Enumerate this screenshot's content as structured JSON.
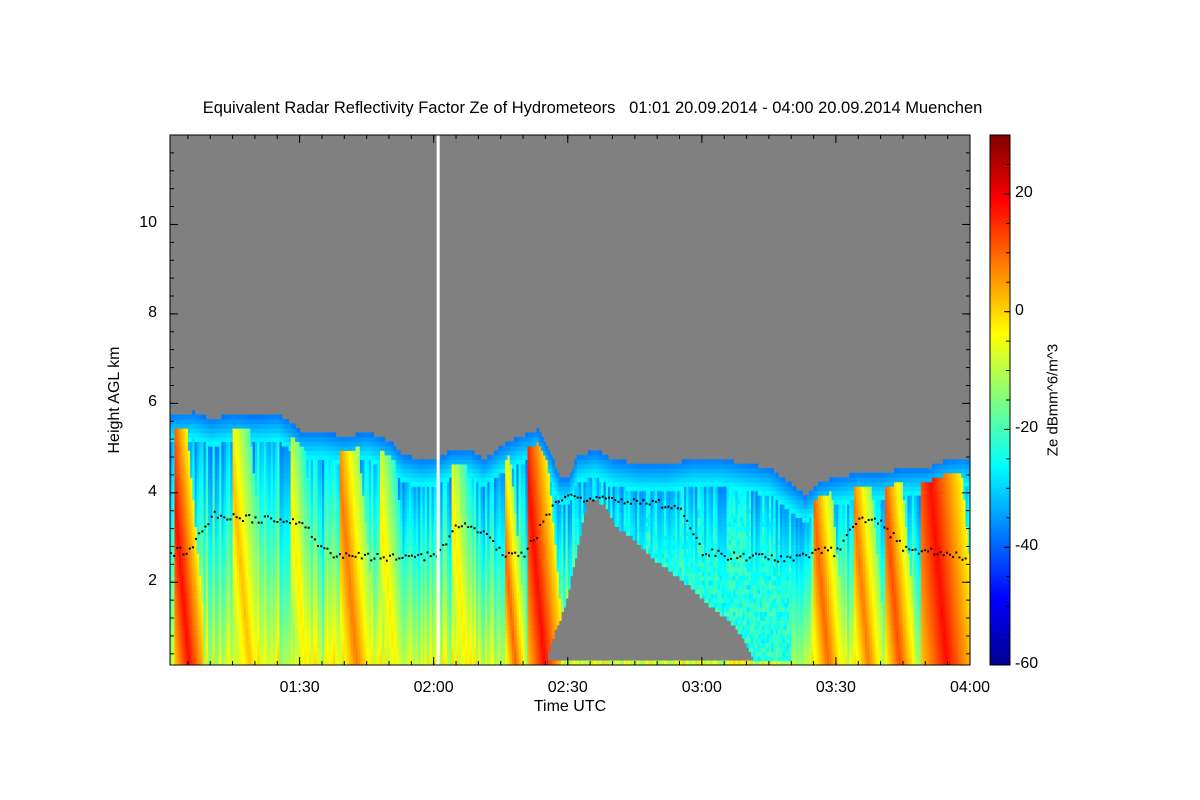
{
  "chart_data": {
    "type": "heatmap",
    "title": "Equivalent Radar Reflectivity Factor Ze of Hydrometeors   01:01 20.09.2014 - 04:00 20.09.2014 Muenchen",
    "xlabel": "Time UTC",
    "ylabel": "Height AGL km",
    "colorbar_label": "Ze dBmm^6/m^3",
    "xlim_minutes": [
      61,
      240
    ],
    "ylim_km": [
      0.15,
      12
    ],
    "clim": [
      -60,
      30
    ],
    "x_ticks": [
      {
        "minute": 90,
        "label": "01:30"
      },
      {
        "minute": 120,
        "label": "02:00"
      },
      {
        "minute": 150,
        "label": "02:30"
      },
      {
        "minute": 180,
        "label": "03:00"
      },
      {
        "minute": 210,
        "label": "03:30"
      },
      {
        "minute": 240,
        "label": "04:00"
      }
    ],
    "y_ticks": [
      {
        "value": 2,
        "label": "2"
      },
      {
        "value": 4,
        "label": "4"
      },
      {
        "value": 6,
        "label": "6"
      },
      {
        "value": 8,
        "label": "8"
      },
      {
        "value": 10,
        "label": "10"
      }
    ],
    "colorbar_ticks": [
      {
        "value": 20,
        "label": "20"
      },
      {
        "value": 0,
        "label": "0"
      },
      {
        "value": -20,
        "label": "-20"
      },
      {
        "value": -40,
        "label": "-40"
      },
      {
        "value": -60,
        "label": "-60"
      }
    ],
    "data_gap_minute": 121,
    "echo_top_km": [
      [
        61,
        5.7
      ],
      [
        66,
        5.75
      ],
      [
        70,
        5.6
      ],
      [
        75,
        5.7
      ],
      [
        80,
        5.65
      ],
      [
        85,
        5.7
      ],
      [
        88,
        5.5
      ],
      [
        90,
        5.3
      ],
      [
        95,
        5.3
      ],
      [
        100,
        5.2
      ],
      [
        105,
        5.3
      ],
      [
        110,
        5.1
      ],
      [
        113,
        4.8
      ],
      [
        117,
        4.7
      ],
      [
        121,
        4.75
      ],
      [
        124,
        4.9
      ],
      [
        128,
        4.9
      ],
      [
        131,
        4.7
      ],
      [
        135,
        5.0
      ],
      [
        139,
        5.2
      ],
      [
        143,
        5.35
      ],
      [
        146,
        4.8
      ],
      [
        148,
        4.3
      ],
      [
        150,
        4.3
      ],
      [
        152,
        4.8
      ],
      [
        156,
        4.9
      ],
      [
        160,
        4.7
      ],
      [
        166,
        4.6
      ],
      [
        172,
        4.6
      ],
      [
        178,
        4.7
      ],
      [
        184,
        4.7
      ],
      [
        190,
        4.6
      ],
      [
        195,
        4.5
      ],
      [
        199,
        4.2
      ],
      [
        203,
        3.9
      ],
      [
        206,
        4.2
      ],
      [
        210,
        4.3
      ],
      [
        215,
        4.4
      ],
      [
        220,
        4.4
      ],
      [
        225,
        4.5
      ],
      [
        230,
        4.5
      ],
      [
        235,
        4.7
      ],
      [
        238,
        4.75
      ],
      [
        240,
        4.7
      ]
    ],
    "rain_echo_base_km": [
      [
        61,
        0.15
      ],
      [
        145,
        0.15
      ],
      [
        146,
        0.6
      ],
      [
        149,
        1.4
      ],
      [
        151,
        2.3
      ],
      [
        153,
        3.3
      ],
      [
        154,
        3.8
      ],
      [
        156,
        3.8
      ],
      [
        158,
        3.7
      ],
      [
        160,
        3.3
      ],
      [
        162,
        3.1
      ],
      [
        164,
        3.0
      ],
      [
        166,
        2.8
      ],
      [
        168,
        2.6
      ],
      [
        170,
        2.4
      ],
      [
        172,
        2.3
      ],
      [
        174,
        2.1
      ],
      [
        176,
        1.95
      ],
      [
        178,
        1.8
      ],
      [
        180,
        1.6
      ],
      [
        182,
        1.4
      ],
      [
        186,
        1.1
      ],
      [
        189,
        0.7
      ],
      [
        192,
        0.15
      ],
      [
        240,
        0.15
      ]
    ],
    "fall_streaks": [
      {
        "start_minute": 62,
        "end_minute": 68,
        "peak_dbz": 18
      },
      {
        "start_minute": 75,
        "end_minute": 82,
        "peak_dbz": 2
      },
      {
        "start_minute": 88,
        "end_minute": 94,
        "peak_dbz": -2
      },
      {
        "start_minute": 94,
        "end_minute": 98,
        "peak_dbz": -30
      },
      {
        "start_minute": 99,
        "end_minute": 106,
        "peak_dbz": 8
      },
      {
        "start_minute": 108,
        "end_minute": 114,
        "peak_dbz": -2
      },
      {
        "start_minute": 124,
        "end_minute": 130,
        "peak_dbz": -2
      },
      {
        "start_minute": 136,
        "end_minute": 140,
        "peak_dbz": 10
      },
      {
        "start_minute": 141,
        "end_minute": 148,
        "peak_dbz": 18
      },
      {
        "start_minute": 185,
        "end_minute": 189,
        "peak_dbz": -30
      },
      {
        "start_minute": 205,
        "end_minute": 211,
        "peak_dbz": 10
      },
      {
        "start_minute": 214,
        "end_minute": 220,
        "peak_dbz": 8
      },
      {
        "start_minute": 221,
        "end_minute": 227,
        "peak_dbz": 12
      },
      {
        "start_minute": 229,
        "end_minute": 240,
        "peak_dbz": 18
      }
    ],
    "melting_layer_km": [
      [
        61,
        2.7
      ],
      [
        65,
        2.75
      ],
      [
        70,
        3.5
      ],
      [
        75,
        3.5
      ],
      [
        80,
        3.4
      ],
      [
        85,
        3.4
      ],
      [
        90,
        3.4
      ],
      [
        95,
        2.7
      ],
      [
        100,
        2.6
      ],
      [
        105,
        2.6
      ],
      [
        110,
        2.6
      ],
      [
        115,
        2.6
      ],
      [
        120,
        2.6
      ],
      [
        125,
        3.3
      ],
      [
        130,
        3.2
      ],
      [
        135,
        2.7
      ],
      [
        140,
        2.65
      ],
      [
        148,
        3.9
      ],
      [
        155,
        3.9
      ],
      [
        160,
        3.8
      ],
      [
        165,
        3.8
      ],
      [
        170,
        3.8
      ],
      [
        175,
        3.7
      ],
      [
        180,
        2.7
      ],
      [
        185,
        2.6
      ],
      [
        190,
        2.6
      ],
      [
        195,
        2.6
      ],
      [
        200,
        2.55
      ],
      [
        205,
        2.7
      ],
      [
        210,
        2.7
      ],
      [
        215,
        3.5
      ],
      [
        220,
        3.3
      ],
      [
        225,
        2.8
      ],
      [
        230,
        2.7
      ],
      [
        235,
        2.7
      ],
      [
        238,
        2.6
      ]
    ]
  }
}
